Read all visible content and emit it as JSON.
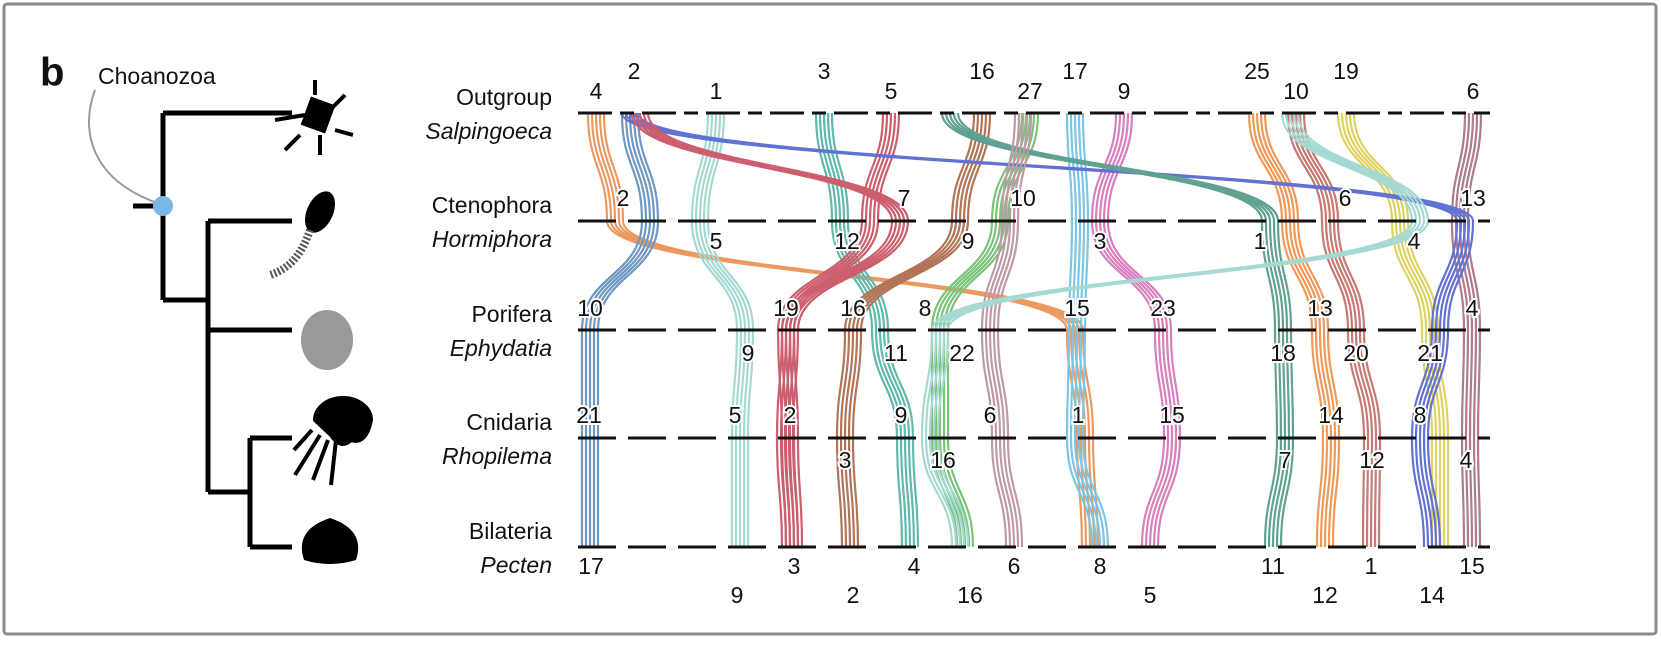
{
  "panel_label": "b",
  "node_label": "Choanozoa",
  "rows": [
    {
      "clade": "Outgroup",
      "species": "Salpingoeca",
      "chromosomes": [
        "4",
        "2",
        "1",
        "3",
        "5",
        "16",
        "27",
        "17",
        "9",
        "25",
        "10",
        "19",
        "6"
      ]
    },
    {
      "clade": "Ctenophora",
      "species": "Hormiphora",
      "chromosomes": [
        "2",
        "5",
        "12",
        "7",
        "9",
        "10",
        "3",
        "1",
        "6",
        "4",
        "13"
      ]
    },
    {
      "clade": "Porifera",
      "species": "Ephydatia",
      "chromosomes": [
        "10",
        "9",
        "19",
        "16",
        "11",
        "8",
        "22",
        "15",
        "23",
        "18",
        "13",
        "20",
        "21",
        "4"
      ]
    },
    {
      "clade": "Cnidaria",
      "species": "Rhopilema",
      "chromosomes": [
        "21",
        "5",
        "2",
        "3",
        "9",
        "16",
        "6",
        "1",
        "15",
        "7",
        "14",
        "12",
        "8",
        "4"
      ]
    },
    {
      "clade": "Bilateria",
      "species": "Pecten",
      "chromosomes": [
        "17",
        "9",
        "3",
        "2",
        "4",
        "16",
        "6",
        "8",
        "5",
        "11",
        "12",
        "1",
        "14",
        "15"
      ]
    }
  ]
}
